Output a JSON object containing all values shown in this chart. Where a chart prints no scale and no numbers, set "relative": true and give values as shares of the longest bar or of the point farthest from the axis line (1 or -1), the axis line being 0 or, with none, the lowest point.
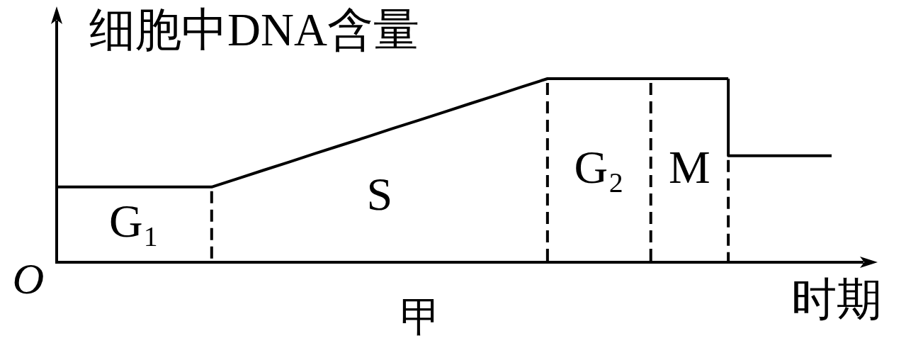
{
  "chart_data": {
    "type": "line",
    "title": "甲",
    "xlabel": "时期",
    "ylabel": "细胞中DNA含量",
    "relative": true,
    "categories": [
      null,
      null,
      null,
      null,
      null,
      null,
      null,
      null,
      null,
      null,
      null,
      null,
      null,
      null,
      null,
      null,
      null,
      null,
      null,
      null,
      null,
      null,
      null,
      null,
      null,
      null,
      null,
      null,
      null,
      null,
      null
    ],
    "series": [
      {
        "color": "#000000",
        "values": [
          0.41,
          0.41,
          0.41,
          0.41,
          0.41,
          0.41,
          0.41,
          0.455,
          0.501,
          0.546,
          0.592,
          0.637,
          0.682,
          0.728,
          0.773,
          0.818,
          0.864,
          0.909,
          0.955,
          1,
          1,
          1,
          1,
          1,
          1,
          1,
          1,
          null,
          null,
          null,
          null
        ]
      },
      {
        "type": "step",
        "color": "#000000",
        "values": [
          null,
          null,
          null,
          null,
          null,
          null,
          null,
          null,
          null,
          null,
          null,
          null,
          null,
          null,
          null,
          null,
          null,
          null,
          null,
          null,
          null,
          null,
          null,
          null,
          null,
          null,
          1,
          0.58,
          0.58,
          0.58,
          0.58
        ]
      }
    ],
    "annotations": [
      "O",
      "G₁",
      "S",
      "G₂",
      "M"
    ],
    "tick_labels": false,
    "grid": false,
    "legend": false,
    "marker": "none",
    "line_style": "solid"
  }
}
